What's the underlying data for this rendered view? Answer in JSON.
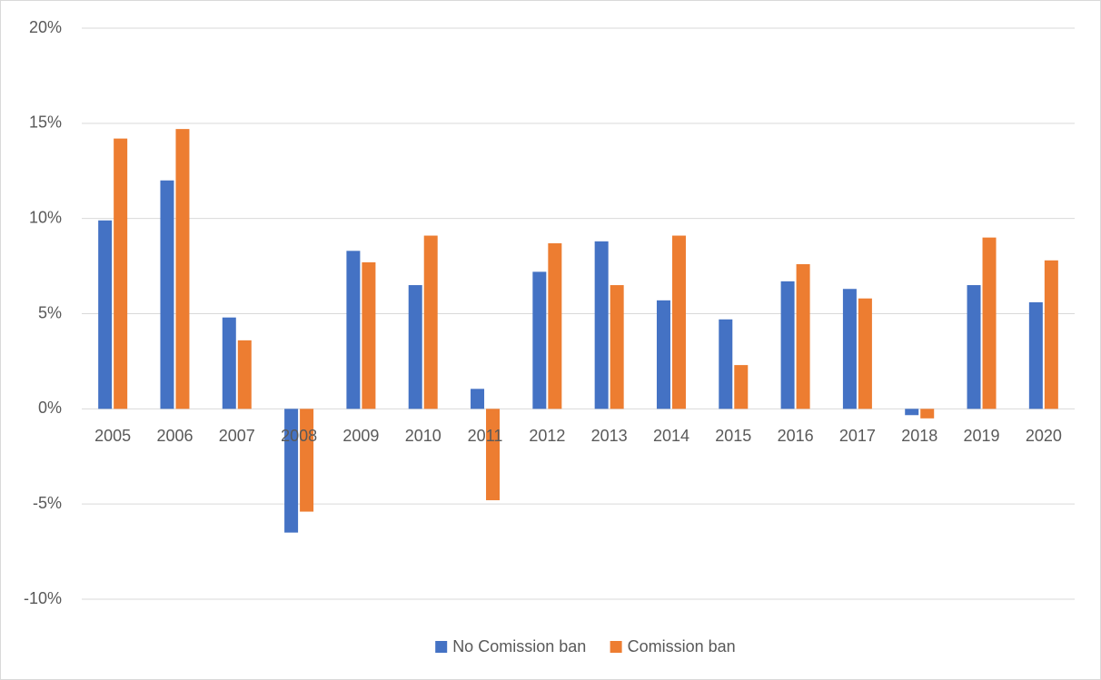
{
  "chart_data": {
    "type": "bar",
    "categories": [
      "2005",
      "2006",
      "2007",
      "2008",
      "2009",
      "2010",
      "2011",
      "2012",
      "2013",
      "2014",
      "2015",
      "2016",
      "2017",
      "2018",
      "2019",
      "2020"
    ],
    "series": [
      {
        "name": "No Comission ban",
        "color": "#4472c4",
        "values": [
          9.9,
          12.0,
          4.8,
          -6.5,
          8.3,
          6.5,
          1.05,
          7.2,
          8.8,
          5.7,
          4.7,
          6.7,
          6.3,
          -0.33,
          6.5,
          5.6
        ]
      },
      {
        "name": "Comission ban",
        "color": "#ed7d31",
        "values": [
          14.2,
          14.7,
          3.6,
          -5.4,
          7.7,
          9.1,
          -4.8,
          8.7,
          6.5,
          9.1,
          2.3,
          7.6,
          5.8,
          -0.5,
          9.0,
          7.8
        ]
      }
    ],
    "ylim": [
      -10,
      20
    ],
    "yticks": [
      {
        "value": -10,
        "label": "-10%"
      },
      {
        "value": -5,
        "label": "-5%"
      },
      {
        "value": 0,
        "label": "0%"
      },
      {
        "value": 5,
        "label": "5%"
      },
      {
        "value": 10,
        "label": "10%"
      },
      {
        "value": 15,
        "label": "15%"
      },
      {
        "value": 20,
        "label": "20%"
      }
    ],
    "grid": true,
    "legend": "bottom"
  }
}
